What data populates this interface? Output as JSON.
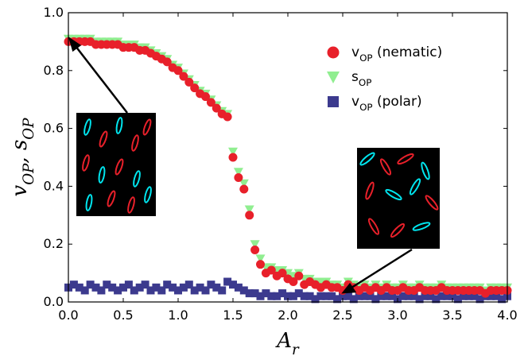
{
  "chart_data": {
    "type": "scatter",
    "xlabel": "A_r",
    "ylabel": "v_OP, s_OP",
    "xlim": [
      0,
      4
    ],
    "ylim": [
      0,
      1
    ],
    "xticks": [
      {
        "value": 0,
        "label": "0.0"
      },
      0.5,
      {
        "value": 1,
        "label": "1.0"
      },
      1.5,
      {
        "value": 2,
        "label": "2.0"
      },
      2.5,
      {
        "value": 3,
        "label": "3.0"
      },
      3.5,
      {
        "value": 4,
        "label": "4.0"
      }
    ],
    "yticks": [
      {
        "value": 0,
        "label": "0.0"
      },
      0.2,
      0.4,
      0.6,
      0.8,
      {
        "value": 1,
        "label": "1.0"
      }
    ],
    "x": [
      0,
      0.05,
      0.1,
      0.15,
      0.2,
      0.25,
      0.3,
      0.35,
      0.4,
      0.45,
      0.5,
      0.55,
      0.6,
      0.65,
      0.7,
      0.75,
      0.8,
      0.85,
      0.9,
      0.95,
      1,
      1.05,
      1.1,
      1.15,
      1.2,
      1.25,
      1.3,
      1.35,
      1.4,
      1.45,
      1.5,
      1.55,
      1.6,
      1.65,
      1.7,
      1.75,
      1.8,
      1.85,
      1.9,
      1.95,
      2,
      2.05,
      2.1,
      2.15,
      2.2,
      2.25,
      2.3,
      2.35,
      2.4,
      2.45,
      2.5,
      2.55,
      2.6,
      2.65,
      2.7,
      2.75,
      2.8,
      2.85,
      2.9,
      2.95,
      3,
      3.05,
      3.1,
      3.15,
      3.2,
      3.25,
      3.3,
      3.35,
      3.4,
      3.45,
      3.5,
      3.55,
      3.6,
      3.65,
      3.7,
      3.75,
      3.8,
      3.85,
      3.9,
      3.95,
      4
    ],
    "series": [
      {
        "name": "s_OP",
        "marker": "triangle",
        "color": "#90ee90",
        "values": [
          0.91,
          0.91,
          0.91,
          0.91,
          0.91,
          0.9,
          0.9,
          0.9,
          0.9,
          0.9,
          0.89,
          0.89,
          0.89,
          0.88,
          0.88,
          0.87,
          0.86,
          0.85,
          0.84,
          0.82,
          0.81,
          0.79,
          0.77,
          0.75,
          0.73,
          0.72,
          0.7,
          0.68,
          0.66,
          0.65,
          0.52,
          0.45,
          0.41,
          0.32,
          0.2,
          0.15,
          0.12,
          0.12,
          0.11,
          0.11,
          0.1,
          0.09,
          0.1,
          0.08,
          0.08,
          0.07,
          0.07,
          0.07,
          0.06,
          0.06,
          0.05,
          0.07,
          0.06,
          0.05,
          0.06,
          0.05,
          0.06,
          0.05,
          0.06,
          0.05,
          0.05,
          0.06,
          0.05,
          0.05,
          0.06,
          0.05,
          0.05,
          0.05,
          0.06,
          0.05,
          0.05,
          0.05,
          0.05,
          0.05,
          0.05,
          0.05,
          0.04,
          0.05,
          0.05,
          0.05,
          0.05
        ]
      },
      {
        "name": "v_OP (polar)",
        "marker": "square",
        "color": "#3c3a8e",
        "values": [
          0.05,
          0.06,
          0.05,
          0.04,
          0.06,
          0.05,
          0.04,
          0.06,
          0.05,
          0.04,
          0.05,
          0.06,
          0.04,
          0.05,
          0.06,
          0.04,
          0.05,
          0.04,
          0.06,
          0.05,
          0.04,
          0.05,
          0.06,
          0.04,
          0.05,
          0.04,
          0.06,
          0.05,
          0.04,
          0.07,
          0.06,
          0.05,
          0.04,
          0.03,
          0.03,
          0.02,
          0.03,
          0.02,
          0.02,
          0.03,
          0.02,
          0.02,
          0.03,
          0.02,
          0.02,
          0.01,
          0.02,
          0.02,
          0.02,
          0.01,
          0.02,
          0.02,
          0.01,
          0.02,
          0.02,
          0.02,
          0.01,
          0.02,
          0.02,
          0.02,
          0.01,
          0.02,
          0.02,
          0.02,
          0.01,
          0.02,
          0.02,
          0.01,
          0.02,
          0.02,
          0.02,
          0.01,
          0.02,
          0.02,
          0.02,
          0.01,
          0.02,
          0.02,
          0.02,
          0.01,
          0.02
        ]
      },
      {
        "name": "v_OP (nematic)",
        "marker": "circle",
        "color": "#e8202a",
        "values": [
          0.9,
          0.9,
          0.9,
          0.9,
          0.9,
          0.89,
          0.89,
          0.89,
          0.89,
          0.89,
          0.88,
          0.88,
          0.88,
          0.87,
          0.87,
          0.86,
          0.85,
          0.84,
          0.83,
          0.81,
          0.8,
          0.78,
          0.76,
          0.74,
          0.72,
          0.71,
          0.69,
          0.67,
          0.65,
          0.64,
          0.5,
          0.43,
          0.39,
          0.3,
          0.18,
          0.13,
          0.1,
          0.11,
          0.09,
          0.1,
          0.08,
          0.07,
          0.09,
          0.06,
          0.07,
          0.06,
          0.05,
          0.06,
          0.05,
          0.05,
          0.04,
          0.06,
          0.05,
          0.04,
          0.05,
          0.04,
          0.05,
          0.04,
          0.05,
          0.04,
          0.04,
          0.05,
          0.04,
          0.04,
          0.05,
          0.04,
          0.04,
          0.04,
          0.05,
          0.04,
          0.04,
          0.04,
          0.04,
          0.04,
          0.04,
          0.04,
          0.03,
          0.04,
          0.04,
          0.04,
          0.04
        ]
      }
    ],
    "legend_order": [
      2,
      0,
      1
    ]
  }
}
